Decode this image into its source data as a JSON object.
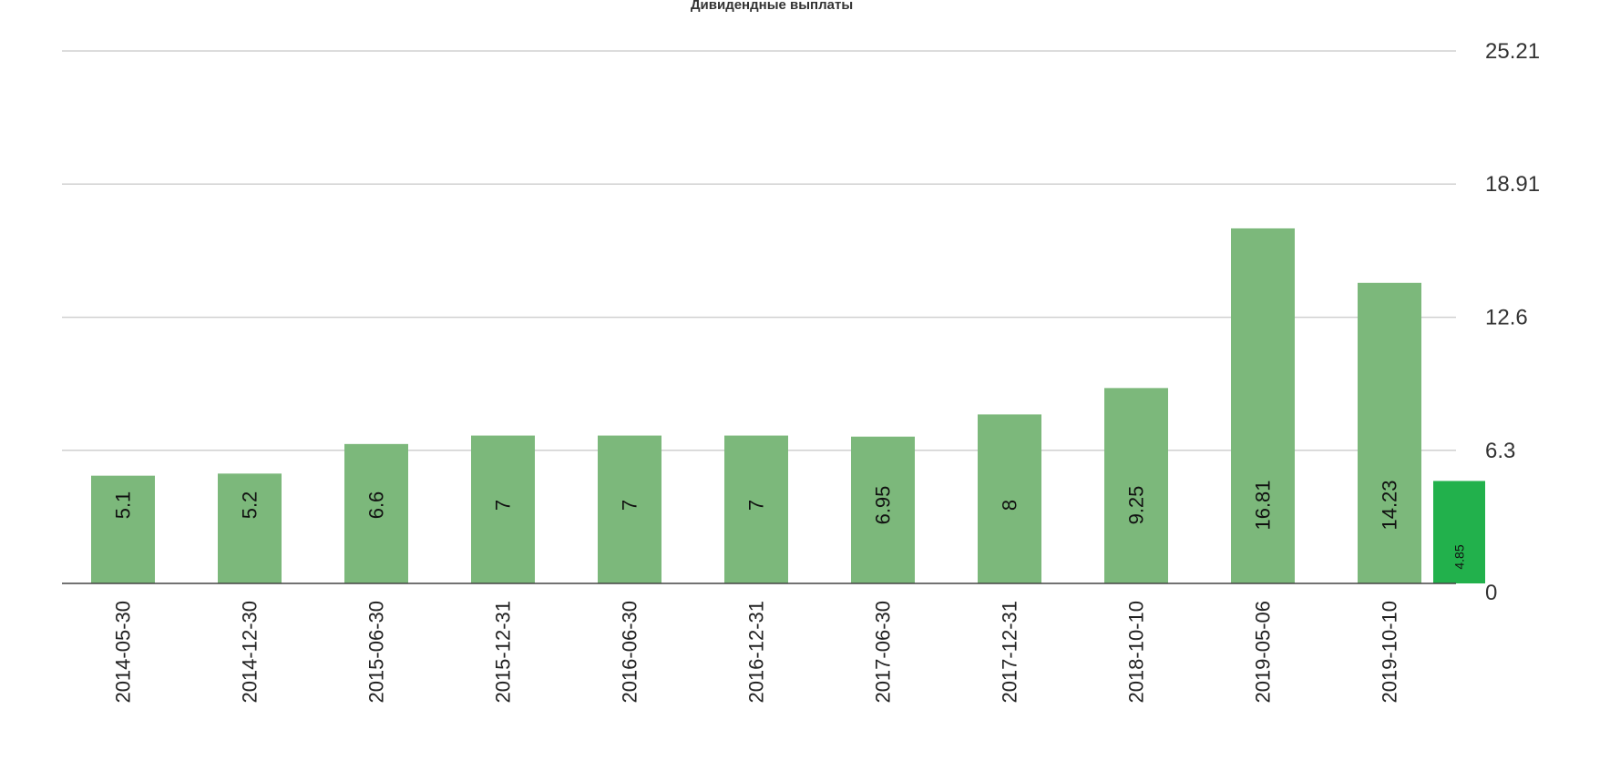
{
  "chart_data": {
    "type": "bar",
    "title": "Дивидендные выплаты",
    "xlabel": "",
    "ylabel": "",
    "categories": [
      "2014-05-30",
      "2014-12-30",
      "2015-06-30",
      "2015-12-31",
      "2016-06-30",
      "2016-12-31",
      "2017-06-30",
      "2017-12-31",
      "2018-10-10",
      "2019-05-06",
      "2019-10-10"
    ],
    "values": [
      5.1,
      5.2,
      6.6,
      7,
      7,
      7,
      6.95,
      8,
      9.25,
      16.81,
      14.23
    ],
    "value_labels": [
      "5.1",
      "5.2",
      "6.6",
      "7",
      "7",
      "7",
      "6.95",
      "8",
      "9.25",
      "16.81",
      "14.23"
    ],
    "extra_bar": {
      "value": 4.85,
      "label": "4.85"
    },
    "yticks": [
      0,
      6.3,
      12.6,
      18.91,
      25.21
    ],
    "ytick_labels": [
      "0",
      "6.3",
      "12.6",
      "18.91",
      "25.21"
    ],
    "ylim": [
      0,
      25.21
    ],
    "y_axis_position": "right",
    "grid": true,
    "legend": "none",
    "colors": {
      "bar": "#7cb87b",
      "extra_bar": "#22b14c",
      "grid": "#d0d0d0",
      "axis": "#444444"
    }
  }
}
